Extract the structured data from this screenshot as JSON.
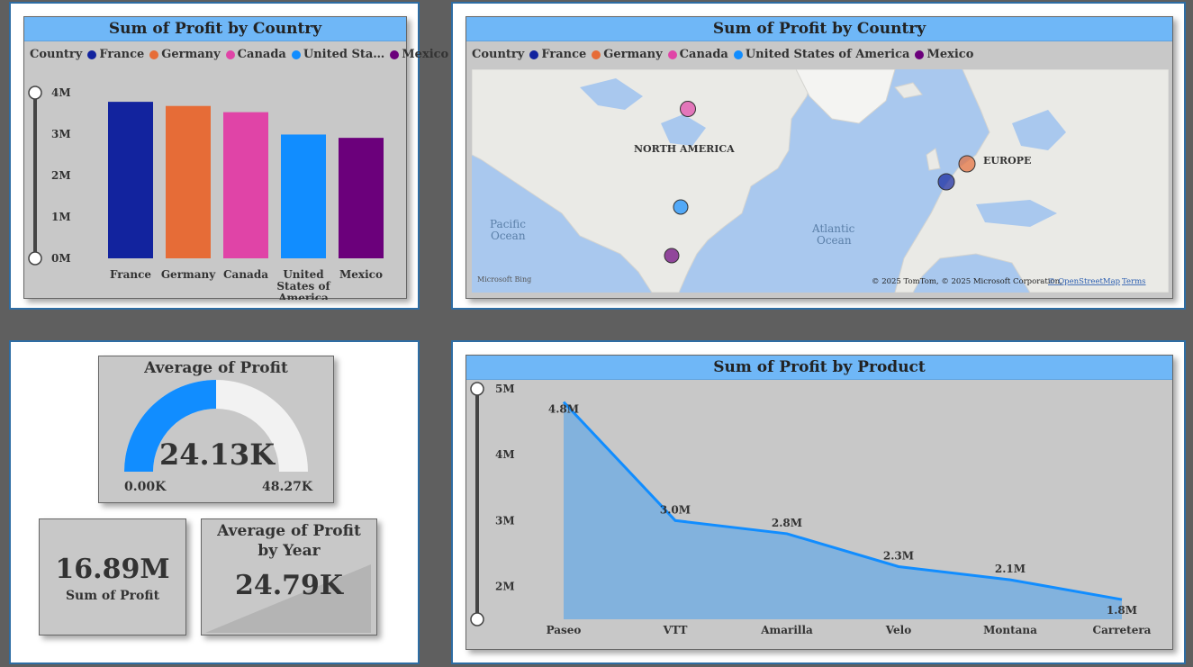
{
  "nav": {
    "back_icon": "back-arrow-icon"
  },
  "bar_card": {
    "title": "Sum of Profit by Country",
    "legend_label": "Country",
    "legend_items": [
      {
        "label": "France",
        "color": "#12239e"
      },
      {
        "label": "Germany",
        "color": "#e66c37"
      },
      {
        "label": "Canada",
        "color": "#e044a7"
      },
      {
        "label": "United Sta…",
        "color": "#118dff"
      },
      {
        "label": "Mexico",
        "color": "#6b007b"
      }
    ]
  },
  "map_card": {
    "title": "Sum of Profit by Country",
    "legend_label": "Country",
    "legend_items": [
      {
        "label": "France",
        "color": "#12239e"
      },
      {
        "label": "Germany",
        "color": "#e66c37"
      },
      {
        "label": "Canada",
        "color": "#e044a7"
      },
      {
        "label": "United States of America",
        "color": "#118dff"
      },
      {
        "label": "Mexico",
        "color": "#6b007b"
      }
    ],
    "labels": {
      "north_america": "NORTH AMERICA",
      "europe": "EUROPE",
      "pacific": "Pacific",
      "pacific2": "Ocean",
      "atlantic": "Atlantic",
      "atlantic2": "Ocean",
      "bing": "Microsoft Bing",
      "copyright": "© 2025 TomTom, © 2025 Microsoft Corporation,",
      "osm": "© OpenStreetMap",
      "terms": "Terms"
    }
  },
  "gauge_card": {
    "title": "Average of Profit",
    "value": "24.13K",
    "min": "0.00K",
    "max": "48.27K",
    "fill_fraction": 0.5
  },
  "kpi_sum": {
    "value": "16.89M",
    "label": "Sum of Profit"
  },
  "kpi_year": {
    "title": "Average of Profit by Year",
    "value": "24.79K"
  },
  "area_card": {
    "title": "Sum of Profit by Product"
  },
  "chart_data": [
    {
      "type": "bar",
      "title": "Sum of Profit by Country",
      "categories": [
        "France",
        "Germany",
        "Canada",
        "United States of America",
        "Mexico"
      ],
      "category_tick_lines": [
        [
          "France"
        ],
        [
          "Germany"
        ],
        [
          "Canada"
        ],
        [
          "United",
          "States of",
          "America"
        ],
        [
          "Mexico"
        ]
      ],
      "values": [
        3.78,
        3.68,
        3.53,
        2.99,
        2.91
      ],
      "colors": [
        "#12239e",
        "#e66c37",
        "#e044a7",
        "#118dff",
        "#6b007b"
      ],
      "ylim": [
        0,
        4
      ],
      "yticks": [
        "0M",
        "1M",
        "2M",
        "3M",
        "4M"
      ],
      "legend": "top-left"
    },
    {
      "type": "area",
      "title": "Sum of Profit by Product",
      "categories": [
        "Paseo",
        "VTT",
        "Amarilla",
        "Velo",
        "Montana",
        "Carretera"
      ],
      "values": [
        4.8,
        3.0,
        2.8,
        2.3,
        2.1,
        1.8
      ],
      "data_labels": [
        "4.8M",
        "3.0M",
        "2.8M",
        "2.3M",
        "2.1M",
        "1.8M"
      ],
      "ylim": [
        1.5,
        5
      ],
      "yticks": [
        "2M",
        "3M",
        "4M",
        "5M"
      ],
      "color": "#118dff"
    }
  ]
}
